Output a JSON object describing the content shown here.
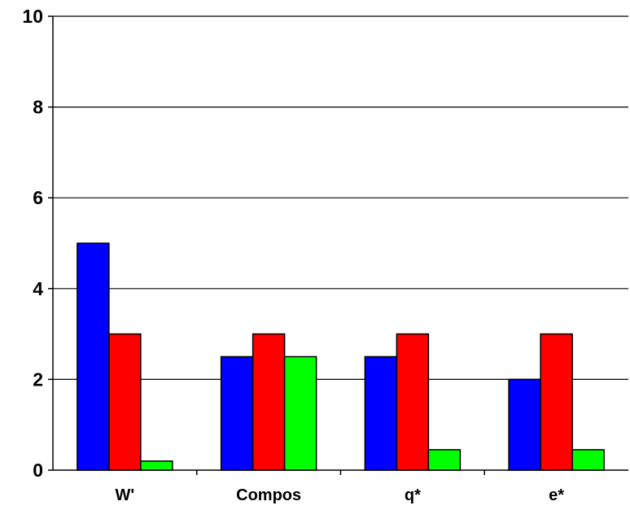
{
  "chart_data": {
    "type": "bar",
    "categories": [
      "W'",
      "Compos",
      "q*",
      "e*"
    ],
    "series": [
      {
        "values": [
          5.0,
          2.5,
          2.5,
          2.0
        ],
        "color": "#0000ff"
      },
      {
        "values": [
          3.0,
          3.0,
          3.0,
          3.0
        ],
        "color": "#ff0000"
      },
      {
        "values": [
          0.2,
          2.5,
          0.45,
          0.45
        ],
        "color": "#00ff00"
      }
    ],
    "yticks": [
      "0",
      "2",
      "4",
      "6",
      "8",
      "10"
    ],
    "ylim": [
      0,
      10
    ],
    "grid": true,
    "legend": "none"
  }
}
